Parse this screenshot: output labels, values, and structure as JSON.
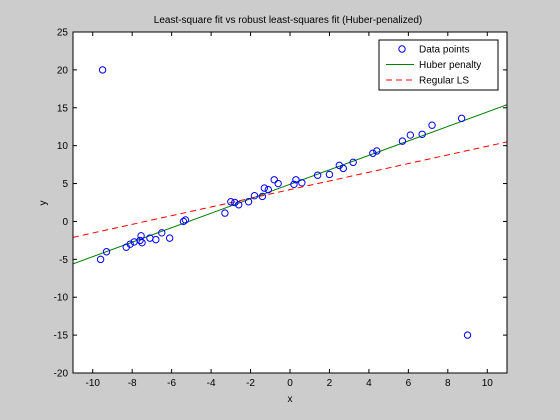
{
  "chart_data": {
    "type": "scatter",
    "title": "Least-square fit vs robust least-squares fit (Huber-penalized)",
    "xlabel": "x",
    "ylabel": "y",
    "xlim": [
      -11,
      11
    ],
    "ylim": [
      -20,
      25
    ],
    "xticks": [
      -10,
      -8,
      -6,
      -4,
      -2,
      0,
      2,
      4,
      6,
      8,
      10
    ],
    "yticks": [
      -20,
      -15,
      -10,
      -5,
      0,
      5,
      10,
      15,
      20,
      25
    ],
    "grid": false,
    "legend_position": "top-right",
    "series": [
      {
        "name": "Data points",
        "kind": "markers",
        "marker": "circle",
        "color": "#0000ff",
        "points": [
          [
            -9.6,
            -5.0
          ],
          [
            -9.5,
            20.0
          ],
          [
            -9.3,
            -4.0
          ],
          [
            -8.3,
            -3.4
          ],
          [
            -8.1,
            -3.0
          ],
          [
            -7.9,
            -2.7
          ],
          [
            -7.6,
            -2.5
          ],
          [
            -7.55,
            -1.9
          ],
          [
            -7.5,
            -2.8
          ],
          [
            -7.1,
            -2.2
          ],
          [
            -6.8,
            -2.4
          ],
          [
            -6.5,
            -1.5
          ],
          [
            -6.1,
            -2.2
          ],
          [
            -5.4,
            0.0
          ],
          [
            -5.3,
            0.2
          ],
          [
            -3.3,
            1.1
          ],
          [
            -3.0,
            2.6
          ],
          [
            -2.8,
            2.5
          ],
          [
            -2.6,
            2.2
          ],
          [
            -2.1,
            2.6
          ],
          [
            -1.8,
            3.4
          ],
          [
            -1.4,
            3.3
          ],
          [
            -1.3,
            4.4
          ],
          [
            -1.1,
            4.2
          ],
          [
            -0.8,
            5.5
          ],
          [
            -0.6,
            5.0
          ],
          [
            0.2,
            4.9
          ],
          [
            0.3,
            5.5
          ],
          [
            0.6,
            5.1
          ],
          [
            1.4,
            6.1
          ],
          [
            2.0,
            6.2
          ],
          [
            2.5,
            7.4
          ],
          [
            2.7,
            7.0
          ],
          [
            3.2,
            7.8
          ],
          [
            4.2,
            9.0
          ],
          [
            4.4,
            9.3
          ],
          [
            5.7,
            10.6
          ],
          [
            6.1,
            11.4
          ],
          [
            6.7,
            11.5
          ],
          [
            7.2,
            12.7
          ],
          [
            8.7,
            13.6
          ],
          [
            9.0,
            -15.0
          ]
        ]
      },
      {
        "name": "Huber penalty",
        "kind": "line",
        "style": "solid",
        "color": "#008000",
        "points": [
          [
            -11,
            -5.6
          ],
          [
            11,
            15.4
          ]
        ]
      },
      {
        "name": "Regular LS",
        "kind": "line",
        "style": "dashed",
        "color": "#ff0000",
        "points": [
          [
            -11,
            -2.1
          ],
          [
            11,
            10.5
          ]
        ]
      }
    ]
  }
}
